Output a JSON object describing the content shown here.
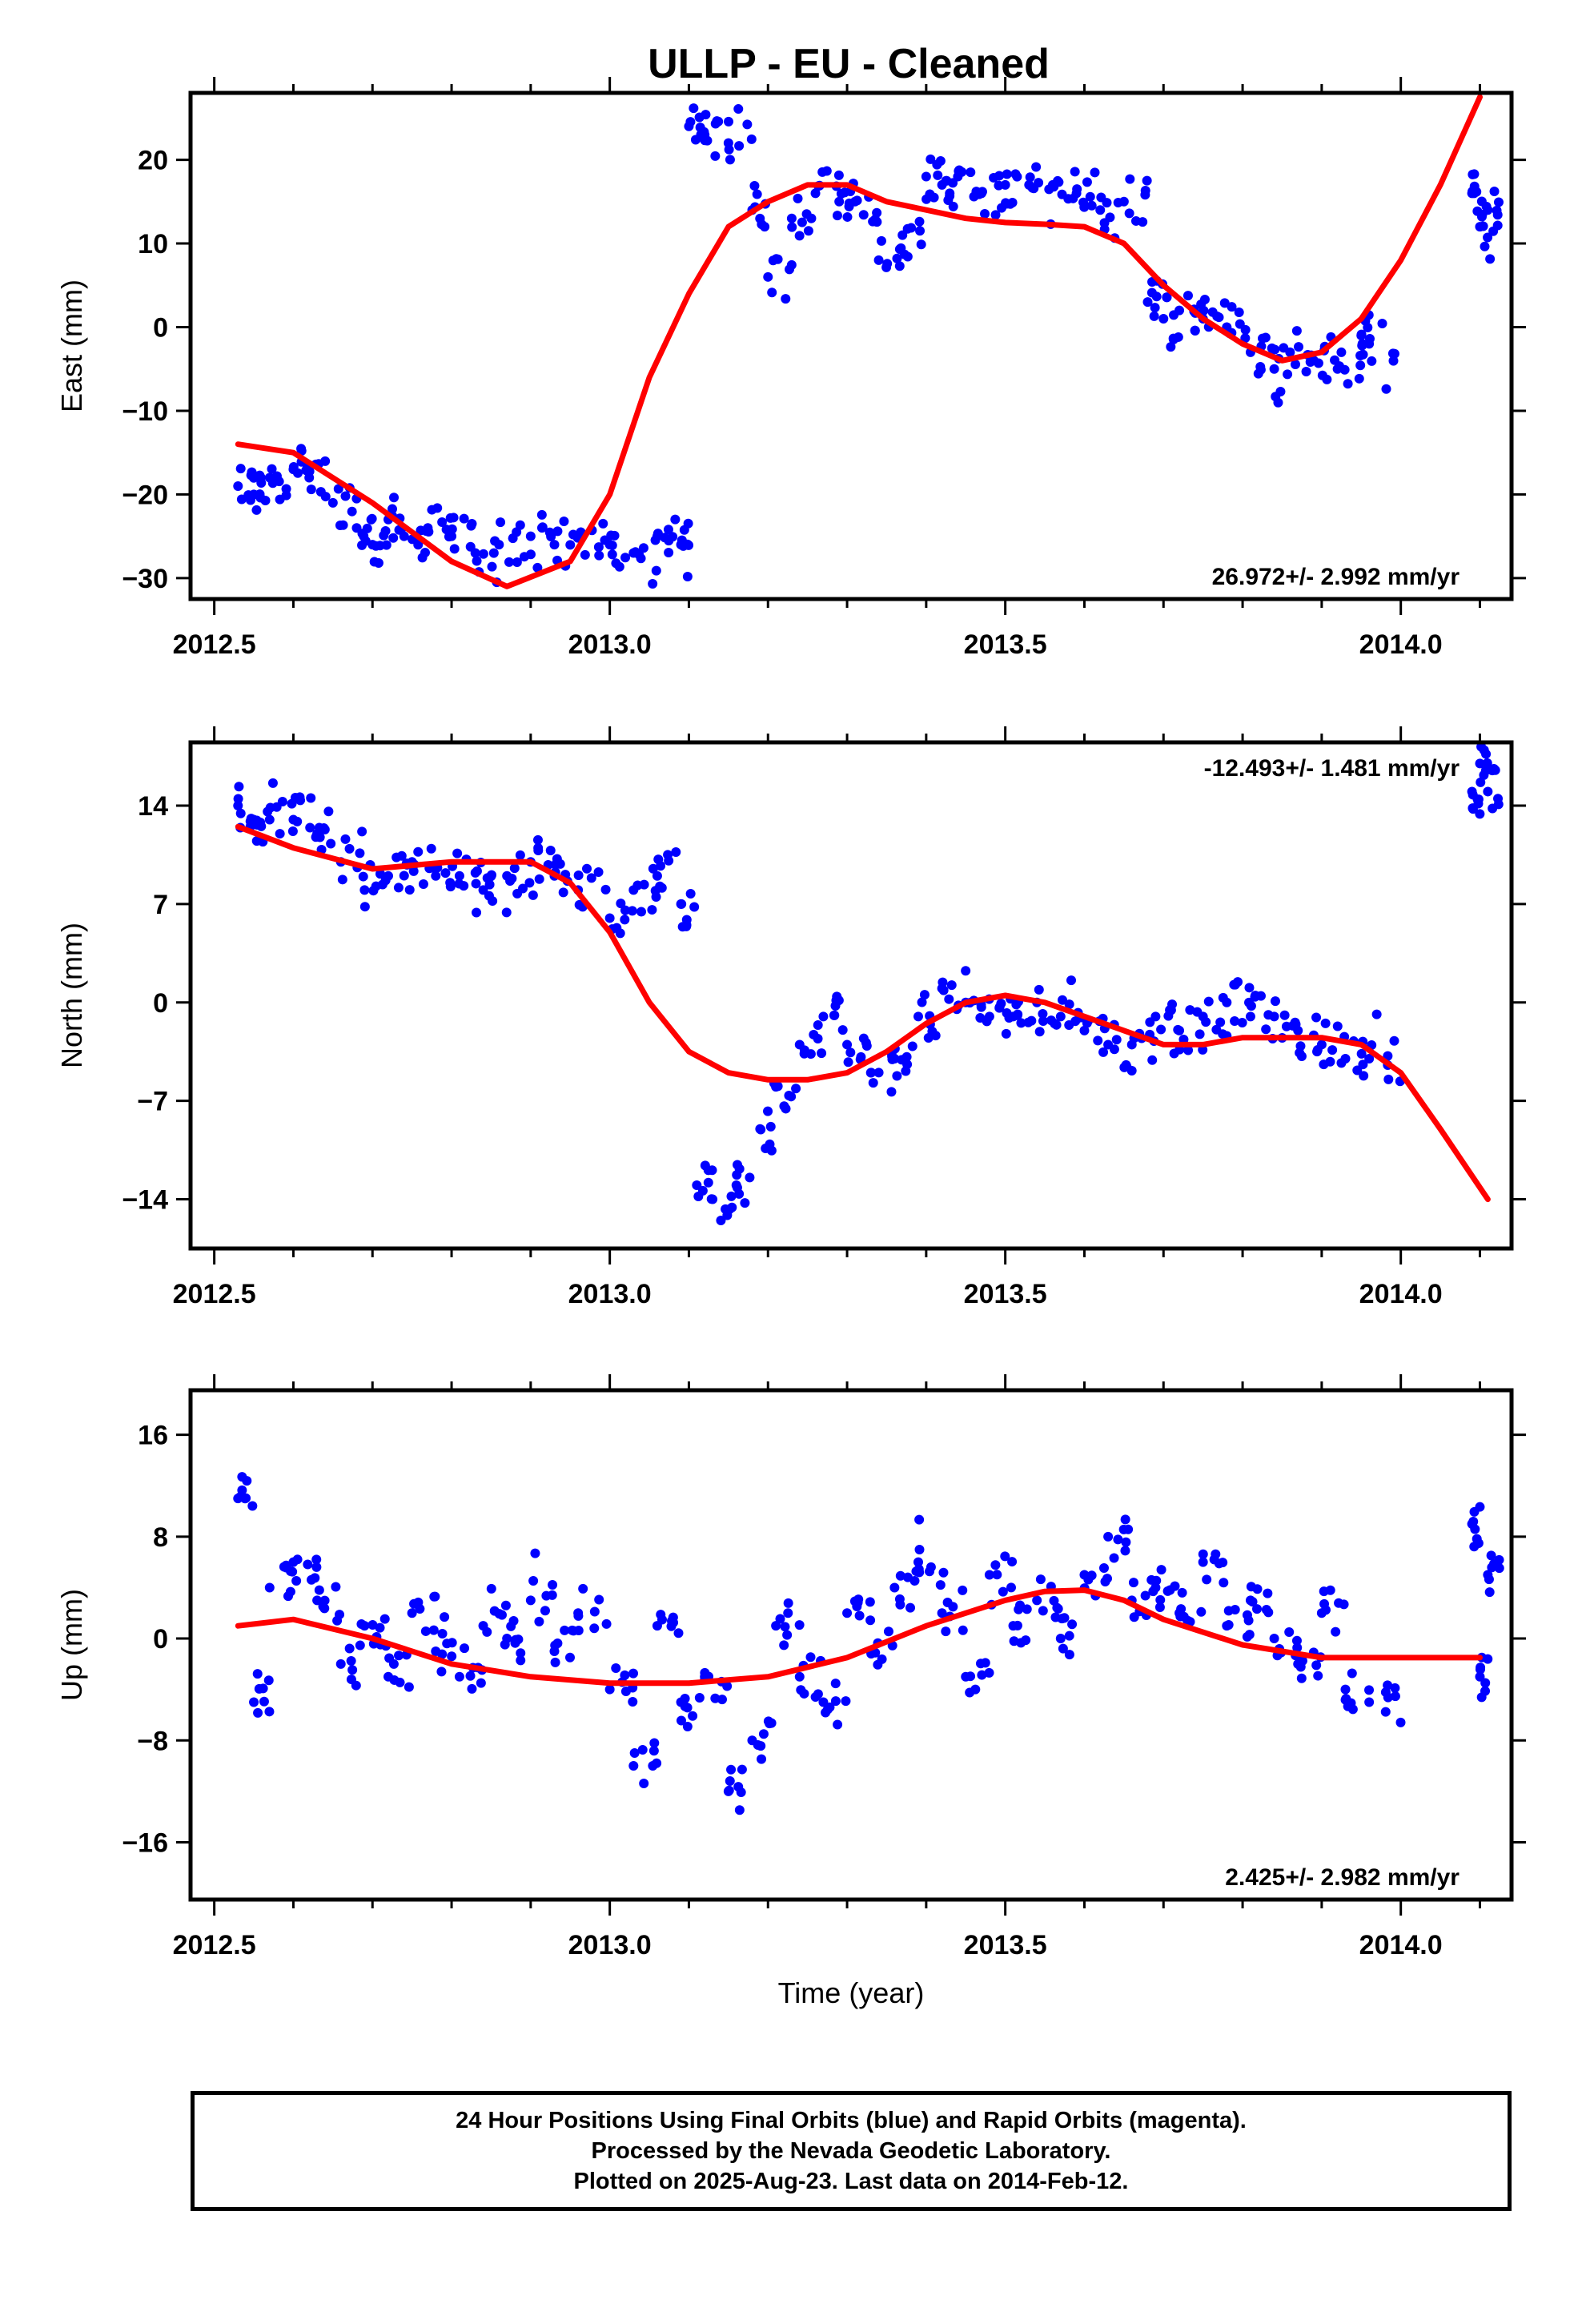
{
  "title": "ULLP  - EU - Cleaned",
  "colors": {
    "data": "#0000ff",
    "fit": "#ff0000",
    "frame": "#000000"
  },
  "footer": {
    "line1": "24 Hour Positions Using Final Orbits (blue) and Rapid Orbits (magenta).",
    "line2": "Processed by the Nevada Geodetic Laboratory.",
    "line3": "Plotted on 2025-Aug-23. Last data on 2014-Feb-12."
  },
  "chart_data": [
    {
      "type": "scatter",
      "ylabel": "East (mm)",
      "xlabel": "",
      "xlim": [
        2012.47,
        2014.14
      ],
      "ylim": [
        -32.5,
        28
      ],
      "xticks": [
        2012.5,
        2013.0,
        2013.5,
        2014.0
      ],
      "xtick_labels": [
        "2012.5",
        "2013.0",
        "2013.5",
        "2014.0"
      ],
      "yticks": [
        20,
        10,
        0,
        -10,
        -20,
        -30
      ],
      "ytick_labels": [
        "20",
        "10",
        "0",
        "−10",
        "−20",
        "−30"
      ],
      "rate_label": "26.972+/- 2.992 mm/yr",
      "rate_position": "bottom-right",
      "series": [
        {
          "type": "scatter",
          "x": [
            2012.53,
            2012.55,
            2012.57,
            2012.6,
            2012.62,
            2012.65,
            2012.68,
            2012.7,
            2012.72,
            2012.74,
            2012.77,
            2012.8,
            2012.83,
            2012.86,
            2012.9,
            2012.93,
            2012.96,
            2013.0,
            2013.03,
            2013.06,
            2013.09,
            2013.1,
            2013.12,
            2013.15,
            2013.18,
            2013.2,
            2013.23,
            2013.26,
            2013.29,
            2013.31,
            2013.34,
            2013.37,
            2013.4,
            2013.42,
            2013.44,
            2013.47,
            2013.5,
            2013.53,
            2013.56,
            2013.59,
            2013.62,
            2013.65,
            2013.68,
            2013.7,
            2013.72,
            2013.75,
            2013.78,
            2013.81,
            2013.84,
            2013.86,
            2013.89,
            2013.92,
            2013.95,
            2013.96,
            2014.09,
            2014.1,
            2014.11
          ],
          "y": [
            -19,
            -20,
            -18,
            -17,
            -18,
            -21,
            -24,
            -26,
            -23,
            -25,
            -24,
            -25,
            -27,
            -26,
            -25,
            -26,
            -25,
            -26,
            -27,
            -25,
            -26,
            24,
            23,
            22,
            14,
            6,
            13,
            16,
            15,
            15,
            8,
            11,
            18,
            17,
            18,
            16,
            17,
            17,
            17,
            16,
            14,
            15,
            3,
            1,
            2,
            1,
            0,
            -3,
            -5,
            -3,
            -4,
            -5,
            -1,
            -2,
            16,
            12,
            14
          ]
        },
        {
          "type": "line",
          "x": [
            2012.53,
            2012.6,
            2012.7,
            2012.8,
            2012.87,
            2012.95,
            2013.0,
            2013.05,
            2013.1,
            2013.15,
            2013.2,
            2013.25,
            2013.3,
            2013.35,
            2013.4,
            2013.45,
            2013.5,
            2013.55,
            2013.6,
            2013.65,
            2013.7,
            2013.75,
            2013.8,
            2013.85,
            2013.9,
            2013.95,
            2014.0,
            2014.05,
            2014.1
          ],
          "y": [
            -14,
            -15,
            -21,
            -28,
            -31,
            -28,
            -20,
            -6,
            4,
            12,
            15,
            17,
            17,
            15,
            14,
            13,
            12.5,
            12.3,
            12,
            10,
            5,
            1,
            -2,
            -4,
            -3,
            1,
            8,
            17,
            27.5
          ]
        }
      ]
    },
    {
      "type": "scatter",
      "ylabel": "North (mm)",
      "xlabel": "",
      "xlim": [
        2012.47,
        2014.14
      ],
      "ylim": [
        -17.5,
        18.5
      ],
      "xticks": [
        2012.5,
        2013.0,
        2013.5,
        2014.0
      ],
      "xtick_labels": [
        "2012.5",
        "2013.0",
        "2013.5",
        "2014.0"
      ],
      "yticks": [
        14,
        7,
        0,
        -7,
        -14
      ],
      "ytick_labels": [
        "14",
        "7",
        "0",
        "−7",
        "−14"
      ],
      "rate_label": "-12.493+/- 1.481 mm/yr",
      "rate_position": "top-right",
      "series": [
        {
          "type": "scatter",
          "x": [
            2012.53,
            2012.55,
            2012.57,
            2012.6,
            2012.63,
            2012.66,
            2012.69,
            2012.72,
            2012.75,
            2012.78,
            2012.81,
            2012.84,
            2012.87,
            2012.9,
            2012.93,
            2012.96,
            2013.0,
            2013.03,
            2013.06,
            2013.09,
            2013.11,
            2013.13,
            2013.16,
            2013.19,
            2013.21,
            2013.24,
            2013.27,
            2013.3,
            2013.33,
            2013.36,
            2013.39,
            2013.42,
            2013.45,
            2013.48,
            2013.51,
            2013.54,
            2013.57,
            2013.6,
            2013.63,
            2013.66,
            2013.69,
            2013.72,
            2013.75,
            2013.78,
            2013.81,
            2013.84,
            2013.87,
            2013.9,
            2013.93,
            2013.96,
            2014.09,
            2014.1,
            2014.11
          ],
          "y": [
            14,
            13,
            13,
            13,
            12,
            10,
            8,
            9,
            10,
            9,
            9,
            8,
            9,
            10,
            9,
            8,
            6,
            8,
            9,
            7,
            -13,
            -14,
            -13,
            -9,
            -6,
            -3,
            -1,
            -3,
            -5,
            -4,
            -1,
            1,
            0,
            -1,
            -1,
            0,
            -1,
            -2,
            -3,
            -3,
            -1,
            -2,
            -1,
            0,
            -1,
            -1,
            -2,
            -3,
            -4,
            -4,
            15,
            17,
            15
          ]
        },
        {
          "type": "line",
          "x": [
            2012.53,
            2012.6,
            2012.7,
            2012.8,
            2012.9,
            2012.95,
            2013.0,
            2013.05,
            2013.1,
            2013.15,
            2013.2,
            2013.25,
            2013.3,
            2013.35,
            2013.4,
            2013.45,
            2013.5,
            2013.55,
            2013.6,
            2013.65,
            2013.7,
            2013.75,
            2013.8,
            2013.85,
            2013.9,
            2013.95,
            2014.0,
            2014.05,
            2014.11
          ],
          "y": [
            12.5,
            11,
            9.5,
            10,
            10,
            8.5,
            5,
            0,
            -3.5,
            -5,
            -5.5,
            -5.5,
            -5,
            -3.5,
            -1.5,
            0,
            0.5,
            0,
            -1,
            -2,
            -3,
            -3,
            -2.5,
            -2.5,
            -2.5,
            -3,
            -5,
            -9,
            -14
          ]
        }
      ]
    },
    {
      "type": "scatter",
      "ylabel": "Up (mm)",
      "xlabel": "Time (year)",
      "xlim": [
        2012.47,
        2014.14
      ],
      "ylim": [
        -20.5,
        19.5
      ],
      "xticks": [
        2012.5,
        2013.0,
        2013.5,
        2014.0
      ],
      "xtick_labels": [
        "2012.5",
        "2013.0",
        "2013.5",
        "2014.0"
      ],
      "yticks": [
        16,
        8,
        0,
        -8,
        -16
      ],
      "ytick_labels": [
        "16",
        "8",
        "0",
        "−8",
        "−16"
      ],
      "rate_label": "2.425+/- 2.982 mm/yr",
      "rate_position": "bottom-right",
      "series": [
        {
          "type": "scatter",
          "x": [
            2012.53,
            2012.55,
            2012.57,
            2012.6,
            2012.63,
            2012.66,
            2012.69,
            2012.72,
            2012.75,
            2012.78,
            2012.81,
            2012.84,
            2012.87,
            2012.9,
            2012.93,
            2012.96,
            2013.0,
            2013.03,
            2013.06,
            2013.09,
            2013.12,
            2013.15,
            2013.18,
            2013.21,
            2013.24,
            2013.27,
            2013.3,
            2013.33,
            2013.36,
            2013.39,
            2013.42,
            2013.45,
            2013.48,
            2013.51,
            2013.54,
            2013.57,
            2013.6,
            2013.63,
            2013.66,
            2013.69,
            2013.72,
            2013.75,
            2013.78,
            2013.81,
            2013.84,
            2013.87,
            2013.9,
            2013.93,
            2013.96,
            2014.09,
            2014.1,
            2014.11
          ],
          "y": [
            11,
            -5,
            4,
            6,
            3,
            -2,
            1,
            -3,
            2,
            -1,
            -3,
            1,
            0,
            3,
            -1,
            2,
            -4,
            -10,
            1,
            -5,
            -3,
            -12,
            -8,
            1,
            -3,
            -5,
            2,
            -1,
            4,
            6,
            2,
            -3,
            5,
            1,
            3,
            0,
            5,
            8,
            3,
            4,
            2,
            6,
            1,
            3,
            0,
            -2,
            2,
            -4,
            -5,
            9,
            -3,
            5
          ]
        },
        {
          "type": "line",
          "x": [
            2012.53,
            2012.6,
            2012.7,
            2012.8,
            2012.9,
            2013.0,
            2013.1,
            2013.2,
            2013.3,
            2013.4,
            2013.5,
            2013.55,
            2013.6,
            2013.65,
            2013.7,
            2013.8,
            2013.9,
            2014.0,
            2014.1
          ],
          "y": [
            1,
            1.5,
            0,
            -2,
            -3,
            -3.5,
            -3.5,
            -3,
            -1.5,
            1,
            3,
            3.7,
            3.8,
            3,
            1.5,
            -0.5,
            -1.5,
            -1.5,
            -1.5
          ]
        }
      ]
    }
  ]
}
